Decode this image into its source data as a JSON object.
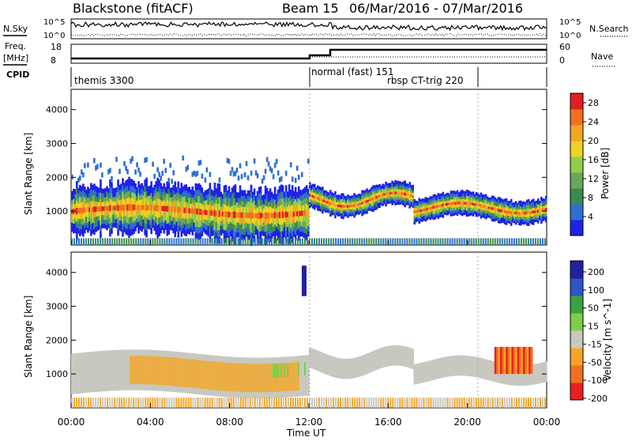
{
  "header": {
    "station": "Blackstone (fitACF)",
    "beam": "Beam 15",
    "dates": "06/Mar/2016 - 07/Mar/2016"
  },
  "strip_labels": {
    "nsky": "N.Sky",
    "nsearch": "N.Search",
    "freq": "Freq.",
    "mhz": "[MHz]",
    "nave": "Nave",
    "cpid": "CPID",
    "nsky_top": "10^5",
    "nsky_bottom": "10^0",
    "nsearch_top": "10^5",
    "nsearch_bottom": "10^0",
    "freq_top": "18",
    "freq_bottom": "8",
    "nave_top": "60",
    "nave_bottom": "0"
  },
  "cpid_segments": [
    {
      "label": "themis 3300"
    },
    {
      "label": "normal (fast) 151"
    },
    {
      "label": "rbsp CT-trig 220"
    }
  ],
  "chart_data": [
    {
      "type": "heatmap",
      "name": "power-panel",
      "ylabel": "Slant Range [km]",
      "yticks": [
        1000,
        2000,
        3000,
        4000
      ],
      "ylim": [
        0,
        4600
      ],
      "colorbar": {
        "label": "Power [dB]",
        "ticks": [
          4,
          8,
          12,
          16,
          20,
          24,
          28
        ],
        "range": [
          0,
          30
        ],
        "colors": [
          "#1e22e6",
          "#2f6fd0",
          "#3a8c4e",
          "#6aa85a",
          "#8fcf4a",
          "#f0d020",
          "#f5a623",
          "#f07020",
          "#e02020"
        ]
      }
    },
    {
      "type": "heatmap",
      "name": "velocity-panel",
      "ylabel": "Slant Range [km]",
      "yticks": [
        1000,
        2000,
        3000,
        4000
      ],
      "ylim": [
        0,
        4600
      ],
      "xlabel": "Time UT",
      "xticks": [
        "00:00",
        "04:00",
        "08:00",
        "12:00",
        "16:00",
        "20:00",
        "00:00"
      ],
      "colorbar": {
        "label": "Velocity [m s^-1]",
        "ticks": [
          200,
          100,
          50,
          15,
          -15,
          -50,
          -100,
          -200
        ],
        "colors": [
          "#2020a0",
          "#2a56c8",
          "#3aa040",
          "#7ccf4a",
          "#c8c8c0",
          "#f5a623",
          "#f07020",
          "#e82020"
        ]
      }
    }
  ]
}
